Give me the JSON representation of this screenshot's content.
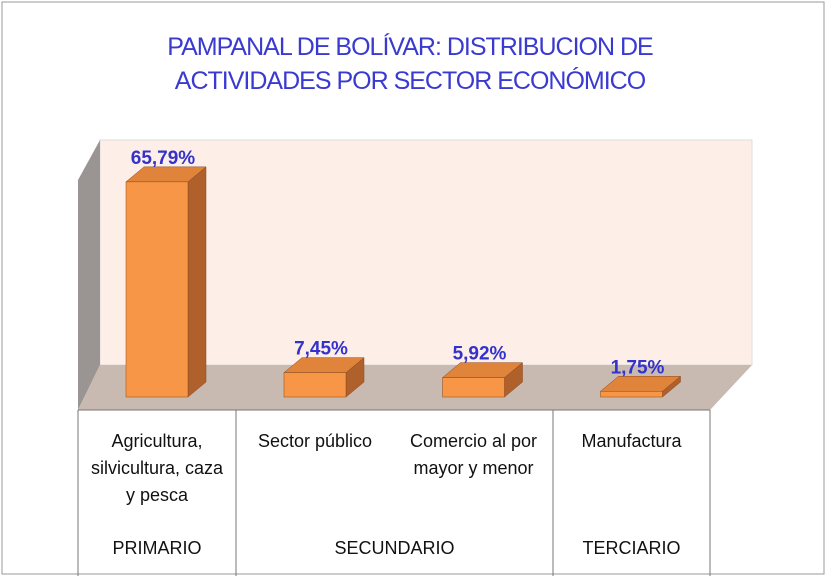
{
  "chart_data": {
    "type": "bar",
    "title": "PAMPANAL DE BOLÍVAR: DISTRIBUCION DE ACTIVIDADES POR SECTOR ECONÓMICO",
    "categories": [
      "Agricultura, silvicultura, caza y pesca",
      "Sector público",
      "Comercio al por mayor y menor",
      "Manufactura"
    ],
    "groups": [
      "PRIMARIO",
      "SECUNDARIO",
      "TERCIARIO"
    ],
    "values": [
      65.79,
      7.45,
      5.92,
      1.75
    ],
    "value_labels": [
      "65,79%",
      "7,45%",
      "5,92%",
      "1,75%"
    ],
    "color": "#f79646"
  }
}
